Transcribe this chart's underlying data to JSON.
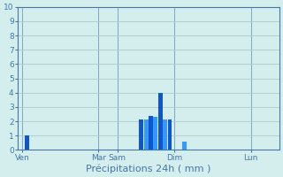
{
  "title": "Précipitations 24h ( mm )",
  "background_color": "#d4eeed",
  "grid_color": "#aacccc",
  "ylim": [
    0,
    10
  ],
  "yticks": [
    0,
    1,
    2,
    3,
    4,
    5,
    6,
    7,
    8,
    9,
    10
  ],
  "day_labels": [
    "Ven",
    "Mar",
    "Sam",
    "Dim",
    "Lun"
  ],
  "day_positions": [
    0,
    32,
    40,
    64,
    96
  ],
  "xlim": [
    -2,
    108
  ],
  "bar_data": [
    {
      "x": 2,
      "height": 1.0,
      "color": "#1155cc"
    },
    {
      "x": 50,
      "height": 2.1,
      "color": "#1155cc"
    },
    {
      "x": 52,
      "height": 2.1,
      "color": "#3399ff"
    },
    {
      "x": 54,
      "height": 2.4,
      "color": "#1155cc"
    },
    {
      "x": 56,
      "height": 2.3,
      "color": "#3399ff"
    },
    {
      "x": 58,
      "height": 4.0,
      "color": "#1155cc"
    },
    {
      "x": 60,
      "height": 2.1,
      "color": "#3399ff"
    },
    {
      "x": 62,
      "height": 2.1,
      "color": "#1155cc"
    },
    {
      "x": 68,
      "height": 0.6,
      "color": "#3399ff"
    }
  ],
  "xlabel_fontsize": 8,
  "tick_fontsize": 6.5,
  "axis_color": "#4477aa",
  "spine_color": "#4477aa",
  "bar_width": 1.8
}
